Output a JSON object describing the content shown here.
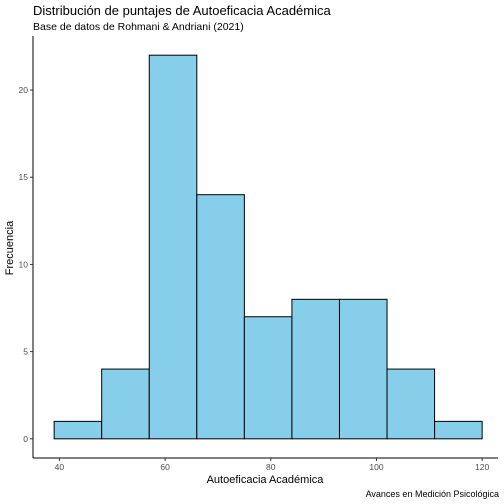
{
  "chart_data": {
    "type": "bar",
    "title": "Distribución de puntajes de Autoeficacia Académica",
    "subtitle": "Base de datos de Rohmani & Andriani (2021)",
    "xlabel": "Autoeficacia Académica",
    "ylabel": "Frecuencia",
    "caption": "Avances en Medición Psicológica",
    "bins": [
      {
        "x0": 39.0,
        "x1": 48.0,
        "count": 1
      },
      {
        "x0": 48.0,
        "x1": 57.0,
        "count": 4
      },
      {
        "x0": 57.0,
        "x1": 66.0,
        "count": 22
      },
      {
        "x0": 66.0,
        "x1": 75.0,
        "count": 14
      },
      {
        "x0": 75.0,
        "x1": 84.0,
        "count": 7
      },
      {
        "x0": 84.0,
        "x1": 93.0,
        "count": 8
      },
      {
        "x0": 93.0,
        "x1": 102.0,
        "count": 8
      },
      {
        "x0": 102.0,
        "x1": 111.0,
        "count": 4
      },
      {
        "x0": 111.0,
        "x1": 120.0,
        "count": 1
      }
    ],
    "xlim": [
      35,
      123
    ],
    "ylim": [
      -1.1,
      23.1
    ],
    "xticks": [
      40,
      60,
      80,
      100,
      120
    ],
    "yticks": [
      0,
      5,
      10,
      15,
      20
    ],
    "bar_fill": "#87ceeb",
    "bar_stroke": "#000000",
    "grid": false,
    "legend": "none"
  }
}
